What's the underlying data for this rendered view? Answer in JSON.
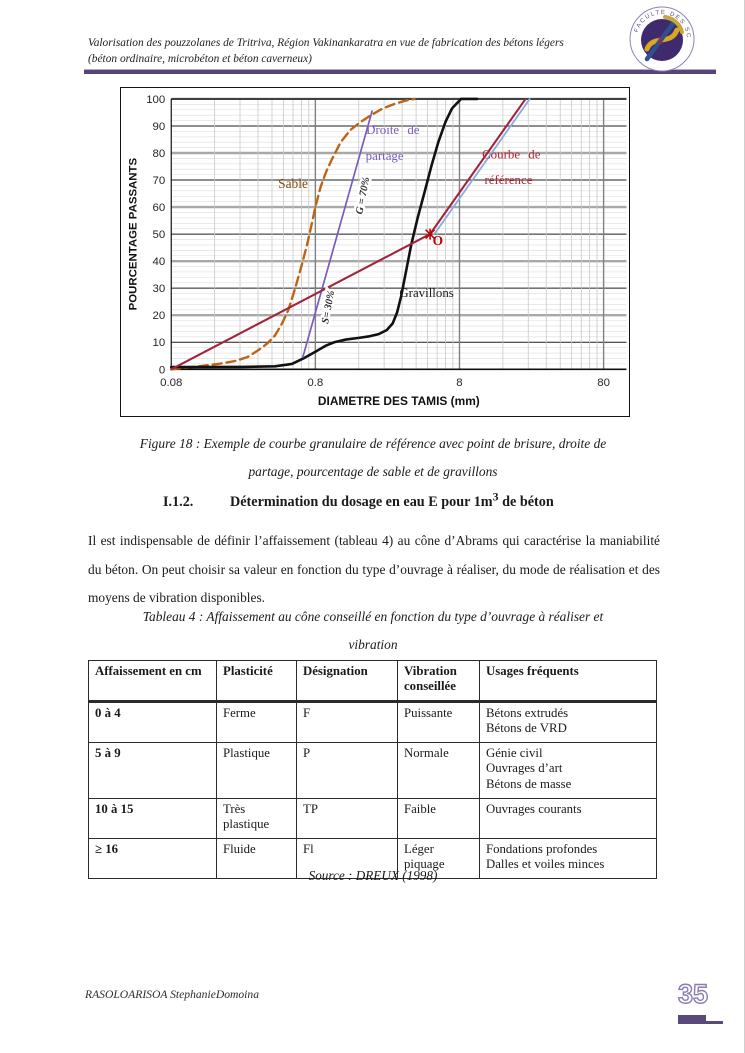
{
  "header": {
    "line1": "Valorisation des pouzzolanes de Tritriva, Région Vakinankaratra en vue de fabrication des bétons légers",
    "line2": "(béton ordinaire, microbéton et béton caverneux)",
    "logo_ring_text": "FACULTE DES SCIENCES"
  },
  "figure": {
    "caption_line1": "Figure 18 : Exemple de courbe granulaire de référence avec point de brisure, droite de",
    "caption_line2": "partage, pourcentage de sable et de gravillons"
  },
  "section": {
    "number": "I.1.2.",
    "title_pre_sup": "Détermination du dosage en eau E pour 1m",
    "title_sup": "3",
    "title_post_sup": " de béton"
  },
  "paragraph": "Il est indispensable de définir l’affaissement (tableau 4) au cône d’Abrams qui caractérise la maniabilité du béton. On peut choisir sa valeur en fonction du type d’ouvrage à réaliser, du mode de réalisation et des moyens de vibration disponibles.",
  "table": {
    "caption_line1": "Tableau 4 : Affaissement au cône conseillé en fonction du type d’ouvrage à réaliser et",
    "caption_line2": "vibration",
    "headers": [
      "Affaissement en cm",
      "Plasticité",
      "Désignation",
      "Vibration conseillée",
      "Usages fréquents"
    ],
    "rows": [
      [
        "0 à 4",
        "Ferme",
        "F",
        "Puissante",
        [
          "Bétons extrudés",
          "Bétons de VRD"
        ]
      ],
      [
        "5 à 9",
        "Plastique",
        "P",
        "Normale",
        [
          "Génie civil",
          "Ouvrages d’art",
          "Bétons de masse"
        ]
      ],
      [
        "10 à 15",
        [
          "Très",
          "plastique"
        ],
        "TP",
        "Faible",
        [
          "Ouvrages courants"
        ]
      ],
      [
        "≥ 16",
        "Fluide",
        "Fl",
        [
          "Léger",
          "piquage"
        ],
        [
          "Fondations profondes",
          "Dalles et voiles minces"
        ]
      ]
    ],
    "source": "Source : DREUX (1998)"
  },
  "footer": {
    "author": "RASOLOARISOA StephanieDomoina",
    "page_number": "35"
  },
  "chart_data": {
    "type": "line",
    "xlabel": "DIAMETRE DES TAMIS (mm)",
    "ylabel": "POURCENTAGE PASSANTS",
    "xscale": "log",
    "xlim": [
      0.08,
      115
    ],
    "ylim": [
      0,
      100
    ],
    "x_ticks": [
      "0.08",
      "0.8",
      "8",
      "80"
    ],
    "y_tick_step": 10,
    "grid": "on",
    "series": [
      {
        "name": "Sable",
        "color": "#bf6414",
        "dash": [
          9,
          5
        ],
        "width": 2.4,
        "points": [
          [
            0.08,
            0
          ],
          [
            0.12,
            1
          ],
          [
            0.17,
            2
          ],
          [
            0.22,
            3
          ],
          [
            0.27,
            4.5
          ],
          [
            0.32,
            7
          ],
          [
            0.37,
            9.5
          ],
          [
            0.42,
            12.5
          ],
          [
            0.47,
            17
          ],
          [
            0.52,
            22
          ],
          [
            0.58,
            30
          ],
          [
            0.64,
            38
          ],
          [
            0.7,
            46
          ],
          [
            0.75,
            53
          ],
          [
            0.8,
            60
          ],
          [
            0.87,
            67.5
          ],
          [
            0.95,
            73
          ],
          [
            1.05,
            78
          ],
          [
            1.2,
            84
          ],
          [
            1.4,
            88.5
          ],
          [
            1.65,
            91.5
          ],
          [
            1.95,
            94
          ],
          [
            2.35,
            96.5
          ],
          [
            2.85,
            98.2
          ],
          [
            3.4,
            99.4
          ],
          [
            3.9,
            100
          ]
        ]
      },
      {
        "name": "Gravillons",
        "color": "#111111",
        "width": 2.6,
        "points": [
          [
            0.08,
            0.8
          ],
          [
            0.25,
            0.9
          ],
          [
            0.42,
            1.1
          ],
          [
            0.55,
            2
          ],
          [
            0.66,
            4
          ],
          [
            0.8,
            6.5
          ],
          [
            0.95,
            8.8
          ],
          [
            1.08,
            10
          ],
          [
            1.3,
            11
          ],
          [
            1.6,
            11.6
          ],
          [
            1.9,
            12.2
          ],
          [
            2.2,
            13
          ],
          [
            2.5,
            14.5
          ],
          [
            2.75,
            17
          ],
          [
            2.95,
            21
          ],
          [
            3.15,
            27
          ],
          [
            3.4,
            36
          ],
          [
            3.7,
            46
          ],
          [
            4.1,
            56
          ],
          [
            4.6,
            66
          ],
          [
            5.1,
            75
          ],
          [
            5.7,
            84
          ],
          [
            6.4,
            91.5
          ],
          [
            7.1,
            96.5
          ],
          [
            8.2,
            100
          ],
          [
            10.6,
            100
          ]
        ]
      },
      {
        "name": "Droite de partage",
        "color": "#7a5bc0",
        "width": 1.7,
        "points": [
          [
            0.655,
            4.5
          ],
          [
            1.98,
            95.5
          ]
        ]
      },
      {
        "name": "guide-bleu",
        "color": "#85aede",
        "width": 1.8,
        "points": [
          [
            5.35,
            50
          ],
          [
            24.6,
            100
          ]
        ]
      },
      {
        "name": "Courbe de référence",
        "color": "#a1253c",
        "width": 2.1,
        "points": [
          [
            0.08,
            0
          ],
          [
            5,
            50
          ],
          [
            23,
            100
          ]
        ]
      }
    ],
    "break_point": {
      "label": "O",
      "x": 5,
      "y": 50
    },
    "labels": [
      {
        "text": "Sable",
        "x": 0.56,
        "y": 67,
        "color": "#7f4c10",
        "size": 13.5
      },
      {
        "text": "Droite  de",
        "x": 2.76,
        "y": 87,
        "color": "#7a5bc0",
        "size": 13,
        "wspace": 5
      },
      {
        "text": "partage",
        "x": 2.42,
        "y": 77.5,
        "color": "#7a5bc0",
        "size": 13
      },
      {
        "text": "G = 70%",
        "x": 1.79,
        "y": 64,
        "color": "#2b2b2b",
        "size": 10.5,
        "rotate": -79,
        "italic": true,
        "bold": true,
        "halo": true
      },
      {
        "text": "Courbe  de",
        "x": 18.3,
        "y": 78,
        "color": "#b02535",
        "size": 13,
        "wspace": 5
      },
      {
        "text": "référence",
        "x": 17.5,
        "y": 68.5,
        "color": "#b02535",
        "size": 13
      },
      {
        "text": "Gravillons",
        "x": 4.73,
        "y": 26.8,
        "color": "#1a1a1a",
        "size": 13
      },
      {
        "text": "S= 30%",
        "x": 1.03,
        "y": 22.8,
        "color": "#2b2b2b",
        "size": 10.5,
        "rotate": -79,
        "italic": true,
        "bold": true,
        "halo": true
      },
      {
        "text": "O",
        "x": 5.66,
        "y": 46,
        "color": "#c00000",
        "size": 13.5,
        "bold": true
      }
    ]
  }
}
